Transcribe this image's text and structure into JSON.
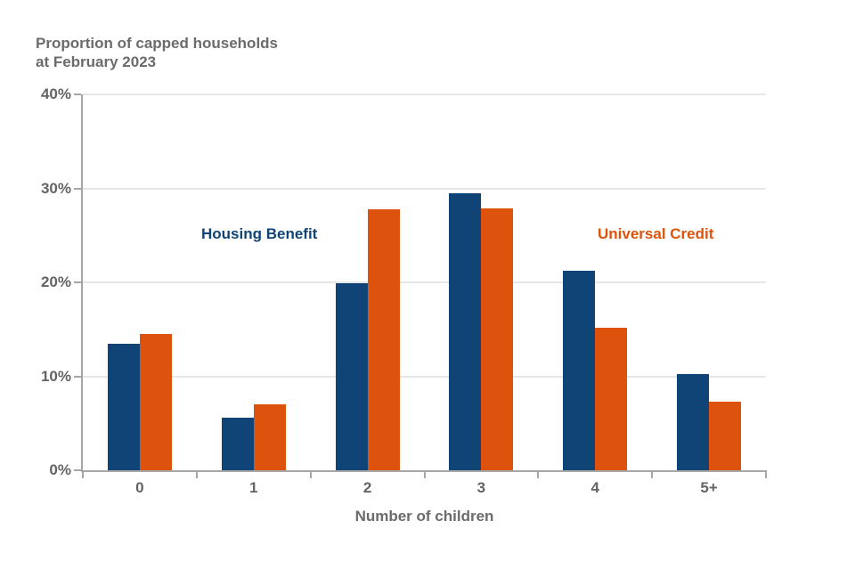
{
  "chart_data": {
    "type": "bar",
    "title_lines": [
      "Proportion of capped households",
      "at February 2023"
    ],
    "categories": [
      "0",
      "1",
      "2",
      "3",
      "4",
      "5+"
    ],
    "series": [
      {
        "name": "Housing Benefit",
        "color": "#104476",
        "values": [
          13.5,
          5.6,
          19.9,
          29.5,
          21.2,
          10.2
        ]
      },
      {
        "name": "Universal Credit",
        "color": "#DD530D",
        "values": [
          14.5,
          7.0,
          27.8,
          27.9,
          15.2,
          7.3
        ]
      }
    ],
    "xlabel": "Number of children",
    "ylim": [
      0,
      40
    ],
    "y_ticks": [
      {
        "value": 0,
        "label": "0%"
      },
      {
        "value": 10,
        "label": "10%"
      },
      {
        "value": 20,
        "label": "20%"
      },
      {
        "value": 30,
        "label": "30%"
      },
      {
        "value": 40,
        "label": "40%"
      }
    ],
    "grid": true,
    "legend_position": "inline text annotations beside series",
    "axis_color": "#a6a6a6",
    "grid_color": "#e6e6e6",
    "tick_label_color": "#646464",
    "title_color": "#6b6b6b"
  }
}
